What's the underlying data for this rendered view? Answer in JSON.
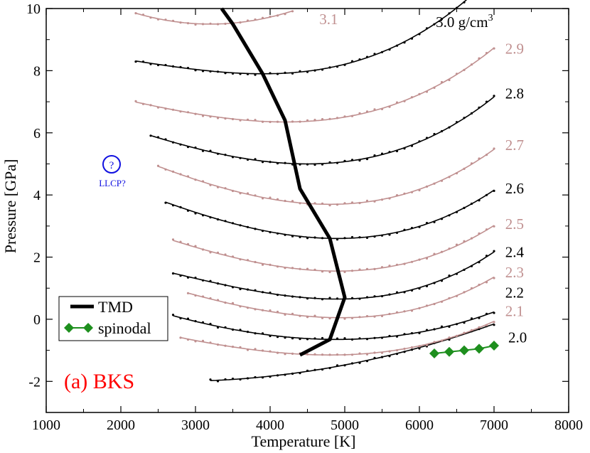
{
  "colors": {
    "black": "#000000",
    "pink": "#c09090",
    "spinodal": "#1e8f1e",
    "llcp": "#1010e0",
    "panel_label": "#ff0000"
  },
  "chart_data": {
    "type": "line",
    "panel_label": "(a) BKS",
    "xlabel": "Temperature [K]",
    "ylabel": "Pressure [GPa]",
    "xlim": [
      1000,
      8000
    ],
    "ylim": [
      -3,
      10
    ],
    "xticks": [
      1000,
      2000,
      3000,
      4000,
      5000,
      6000,
      7000,
      8000
    ],
    "yticks": [
      -2,
      0,
      2,
      4,
      6,
      8,
      10
    ],
    "xtick_labels": [
      "1000",
      "2000",
      "3000",
      "4000",
      "5000",
      "6000",
      "7000",
      "8000"
    ],
    "ytick_labels": [
      "-2",
      "0",
      "2",
      "4",
      "6",
      "8",
      "10"
    ],
    "density_unit": "g/cm",
    "density_unit_exp": "3",
    "isochores": [
      {
        "density": "2.0",
        "color": "black",
        "tmin": 3200,
        "tmax": 7000,
        "tmid": 2700,
        "pmin": -2.0,
        "a": 0.1,
        "b": 0.0,
        "label_T": 7190,
        "label_P": -0.75
      },
      {
        "density": "2.1",
        "color": "pink",
        "tmin": 2800,
        "tmax": 7000,
        "tmid": 4800,
        "pmin": -1.15,
        "a": 0.18,
        "b": 0.02,
        "label_T": 7150,
        "label_P": 0.1
      },
      {
        "density": "2.2",
        "color": "black",
        "tmin": 2700,
        "tmax": 7000,
        "tmid": 4900,
        "pmin": -0.65,
        "a": 0.18,
        "b": 0.01,
        "label_T": 7150,
        "label_P": 0.7
      },
      {
        "density": "2.3",
        "color": "pink",
        "tmin": 2900,
        "tmax": 7000,
        "tmid": 4950,
        "pmin": 0.05,
        "a": 0.25,
        "b": 0.03,
        "label_T": 7150,
        "label_P": 1.35
      },
      {
        "density": "2.4",
        "color": "black",
        "tmin": 2700,
        "tmax": 7000,
        "tmid": 4900,
        "pmin": 0.65,
        "a": 0.26,
        "b": 0.04,
        "label_T": 7150,
        "label_P": 2.0
      },
      {
        "density": "2.5",
        "color": "pink",
        "tmin": 2700,
        "tmax": 7000,
        "tmid": 4900,
        "pmin": 1.55,
        "a": 0.27,
        "b": 0.03,
        "label_T": 7150,
        "label_P": 2.9
      },
      {
        "density": "2.6",
        "color": "black",
        "tmin": 2600,
        "tmax": 7000,
        "tmid": 4900,
        "pmin": 2.6,
        "a": 0.29,
        "b": 0.03,
        "label_T": 7150,
        "label_P": 4.05
      },
      {
        "density": "2.7",
        "color": "pink",
        "tmin": 2500,
        "tmax": 7000,
        "tmid": 4800,
        "pmin": 3.7,
        "a": 0.3,
        "b": 0.03,
        "label_T": 7150,
        "label_P": 5.45
      },
      {
        "density": "2.8",
        "color": "black",
        "tmin": 2400,
        "tmax": 7000,
        "tmid": 4500,
        "pmin": 5.0,
        "a": 0.27,
        "b": 0.03,
        "label_T": 7150,
        "label_P": 7.1
      },
      {
        "density": "2.9",
        "color": "pink",
        "tmin": 2200,
        "tmax": 7000,
        "tmid": 4200,
        "pmin": 6.35,
        "a": 0.22,
        "b": 0.03,
        "label_T": 7150,
        "label_P": 8.55
      },
      {
        "density": "3.0 g/cm3",
        "color": "black",
        "tmin": 2200,
        "tmax": 6800,
        "tmid": 3900,
        "pmin": 7.9,
        "a": 0.21,
        "b": 0.04,
        "label_T": 6220,
        "label_P": 9.4
      },
      {
        "density": "3.1",
        "color": "pink",
        "tmin": 2200,
        "tmax": 4300,
        "tmid": 3200,
        "pmin": 9.5,
        "a": 0.35,
        "b": 0.0,
        "label_T": 4660,
        "label_P": 9.5
      }
    ],
    "tmd": {
      "label": "TMD",
      "T": [
        3350,
        3500,
        3900,
        4200,
        4400,
        4800,
        5000,
        4800,
        4400
      ],
      "P": [
        10.0,
        9.5,
        7.9,
        6.4,
        4.2,
        2.6,
        0.7,
        -0.65,
        -1.15
      ]
    },
    "spinodal": {
      "label": "spinodal",
      "T": [
        6200,
        6400,
        6600,
        6800,
        7000
      ],
      "P": [
        -1.1,
        -1.05,
        -1.0,
        -0.95,
        -0.85
      ]
    },
    "llcp": {
      "label": "LLCP?",
      "symbol": "?",
      "T": 1900,
      "P": 5.0
    },
    "legend": {
      "location": "lower-left",
      "entries": [
        "TMD",
        "spinodal"
      ]
    }
  }
}
